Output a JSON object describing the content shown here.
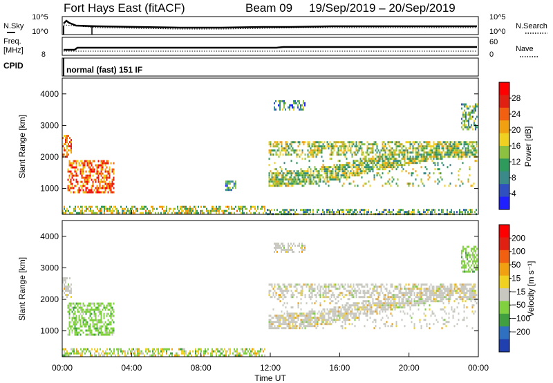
{
  "header": {
    "station": "Fort Hays East (fitACF)",
    "beam": "Beam 09",
    "dates": "19/Sep/2019 – 20/Sep/2019"
  },
  "strips": {
    "noise": {
      "left_label": "N.Sky",
      "right_label": "N.Search",
      "left_ticks": [
        "10^5",
        "10^0"
      ],
      "right_ticks": [
        "10^5",
        "10^0"
      ]
    },
    "freq": {
      "left_label_1": "Freq.",
      "left_label_2": "[MHz]",
      "right_label": "Nave",
      "left_ticks": [
        "8"
      ],
      "right_ticks": [
        "60",
        "0"
      ]
    },
    "cpid": {
      "left_label": "CPID",
      "text": "normal (fast) 151 IF"
    }
  },
  "chart_data": [
    {
      "type": "heatmap",
      "panel": "power",
      "ylabel": "Slant Range [km]",
      "xlabel": "",
      "xlim": [
        0,
        24
      ],
      "ylim": [
        180,
        4500
      ],
      "yticks": [
        1000,
        2000,
        3000,
        4000
      ],
      "colorbar": {
        "label": "Power [dB]",
        "range": [
          0,
          32
        ],
        "ticks": [
          "4",
          "8",
          "12",
          "16",
          "20",
          "24",
          "28"
        ],
        "colors": [
          "#1f1fff",
          "#3050c0",
          "#3a8a8a",
          "#2e9a5c",
          "#8cc040",
          "#f0d020",
          "#f0a010",
          "#f06010",
          "#e02010",
          "#ff0000"
        ]
      },
      "regions": [
        {
          "t": [
            0.0,
            0.5
          ],
          "r": [
            2000,
            2700
          ],
          "level": 0.7
        },
        {
          "t": [
            0.3,
            3.0
          ],
          "r": [
            850,
            1900
          ],
          "level": 0.75
        },
        {
          "t": [
            0.0,
            11.8
          ],
          "r": [
            200,
            450
          ],
          "level": 0.5
        },
        {
          "t": [
            9.4,
            10.0
          ],
          "r": [
            950,
            1250
          ],
          "level": 0.3
        },
        {
          "t": [
            11.8,
            23.9
          ],
          "r": [
            200,
            350
          ],
          "level": 0.35
        },
        {
          "t": [
            11.9,
            23.9
          ],
          "r": [
            1100,
            2500
          ],
          "level": 0.45
        },
        {
          "t": [
            12.2,
            14.0
          ],
          "r": [
            3500,
            3800
          ],
          "level": 0.3
        },
        {
          "t": [
            23.0,
            23.9
          ],
          "r": [
            2900,
            3700
          ],
          "level": 0.35
        }
      ]
    },
    {
      "type": "heatmap",
      "panel": "velocity",
      "ylabel": "Slant Range [km]",
      "xlabel": "Time UT",
      "xlim": [
        0,
        24
      ],
      "ylim": [
        180,
        4500
      ],
      "yticks": [
        1000,
        2000,
        3000,
        4000
      ],
      "xticks": [
        "00:00",
        "04:00",
        "08:00",
        "12:00",
        "16:00",
        "20:00",
        "00:00"
      ],
      "colorbar": {
        "label": "Velocity [m s⁻¹]",
        "range": [
          -250,
          250
        ],
        "ticks": [
          "200",
          "100",
          "50",
          "15",
          "−15",
          "−50",
          "−100",
          "−200"
        ],
        "colors": [
          "#2040b0",
          "#3070c0",
          "#40a040",
          "#80d040",
          "#c8c8c0",
          "#f0d020",
          "#f0a010",
          "#f06010",
          "#e02010",
          "#ff0000"
        ]
      },
      "regions": [
        {
          "t": [
            0.0,
            0.5
          ],
          "r": [
            2000,
            2700
          ],
          "cls": "gray"
        },
        {
          "t": [
            0.3,
            3.0
          ],
          "r": [
            850,
            1900
          ],
          "cls": "green"
        },
        {
          "t": [
            0.0,
            11.8
          ],
          "r": [
            200,
            450
          ],
          "cls": "mixed"
        },
        {
          "t": [
            11.9,
            23.9
          ],
          "r": [
            1100,
            2500
          ],
          "cls": "gray"
        },
        {
          "t": [
            23.0,
            23.9
          ],
          "r": [
            2900,
            3700
          ],
          "cls": "green"
        },
        {
          "t": [
            12.2,
            14.0
          ],
          "r": [
            3500,
            3800
          ],
          "cls": "gray"
        }
      ]
    }
  ]
}
